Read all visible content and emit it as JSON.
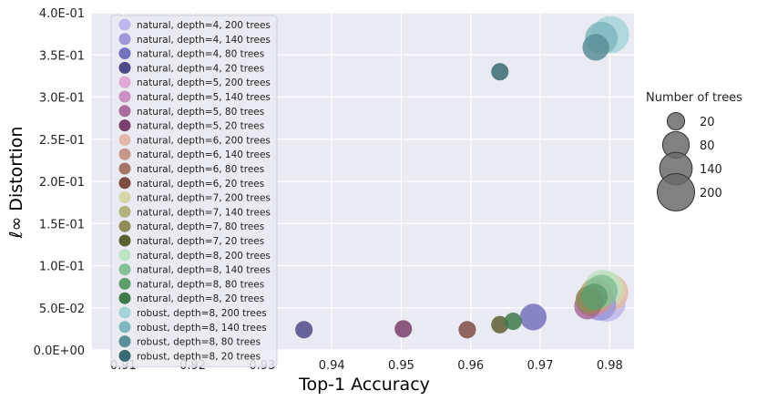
{
  "chart_data": {
    "type": "scatter",
    "xlabel": "Top-1 Accuracy",
    "ylabel": "ℓ∞ Distortion",
    "xlim": [
      0.9055,
      0.9835
    ],
    "ylim": [
      0.0,
      0.4
    ],
    "x_ticks": [
      "0.91",
      "0.92",
      "0.93",
      "0.94",
      "0.95",
      "0.96",
      "0.97",
      "0.98"
    ],
    "y_ticks": [
      "0.0E+00",
      "5.0E-02",
      "1.0E-01",
      "1.5E-01",
      "2.0E-01",
      "2.5E-01",
      "3.0E-01",
      "3.5E-01",
      "4.0E-01"
    ],
    "grid": true,
    "legend_placement": "upper-left",
    "series": [
      {
        "name": "natural, depth=4, 200 trees",
        "color": "#bcb8ec",
        "trees": 200,
        "x": 0.9796,
        "y": 0.056
      },
      {
        "name": "natural, depth=4, 140 trees",
        "color": "#9c98d8",
        "trees": 140,
        "x": 0.9786,
        "y": 0.054
      },
      {
        "name": "natural, depth=4, 80 trees",
        "color": "#7572bc",
        "trees": 80,
        "x": 0.969,
        "y": 0.039
      },
      {
        "name": "natural, depth=4, 20 trees",
        "color": "#4e4b8a",
        "trees": 20,
        "x": 0.936,
        "y": 0.024
      },
      {
        "name": "natural,  depth=5, 200 trees",
        "color": "#e2a8d8",
        "trees": 200,
        "x": 0.9792,
        "y": 0.066
      },
      {
        "name": "natural,  depth=5, 140 trees",
        "color": "#c98fc0",
        "trees": 140,
        "x": 0.9775,
        "y": 0.058
      },
      {
        "name": "natural,  depth=5, 80 trees",
        "color": "#a96c9d",
        "trees": 80,
        "x": 0.9768,
        "y": 0.052
      },
      {
        "name": "natural,  depth=5, 20 trees",
        "color": "#7a3f6c",
        "trees": 20,
        "x": 0.9503,
        "y": 0.025
      },
      {
        "name": "natural, depth=6, 200 trees",
        "color": "#e3b8ac",
        "trees": 200,
        "x": 0.98,
        "y": 0.068
      },
      {
        "name": "natural, depth=6, 140 trees",
        "color": "#c8978c",
        "trees": 140,
        "x": 0.9782,
        "y": 0.063
      },
      {
        "name": "natural, depth=6, 80 trees",
        "color": "#a8756b",
        "trees": 80,
        "x": 0.9772,
        "y": 0.057
      },
      {
        "name": "natural, depth=6, 20 trees",
        "color": "#7c4c45",
        "trees": 20,
        "x": 0.9595,
        "y": 0.024
      },
      {
        "name": "natural, depth=7, 200 trees",
        "color": "#d6d7a8",
        "trees": 200,
        "x": 0.9795,
        "y": 0.071
      },
      {
        "name": "natural, depth=7, 140 trees",
        "color": "#b0b37d",
        "trees": 140,
        "x": 0.978,
        "y": 0.066
      },
      {
        "name": "natural, depth=7, 80 trees",
        "color": "#8d8d57",
        "trees": 80,
        "x": 0.977,
        "y": 0.06
      },
      {
        "name": "natural, depth=7, 20 trees",
        "color": "#5c5f33",
        "trees": 20,
        "x": 0.9642,
        "y": 0.03
      },
      {
        "name": "natural, depth=8, 200 trees",
        "color": "#bde3c5",
        "trees": 200,
        "x": 0.979,
        "y": 0.073
      },
      {
        "name": "natural, depth=8, 140 trees",
        "color": "#86c096",
        "trees": 140,
        "x": 0.9788,
        "y": 0.07
      },
      {
        "name": "natural, depth=8, 80 trees",
        "color": "#5e9e6d",
        "trees": 80,
        "x": 0.9778,
        "y": 0.063
      },
      {
        "name": "natural, depth=8, 20 trees",
        "color": "#3e7a4b",
        "trees": 20,
        "x": 0.9661,
        "y": 0.034
      },
      {
        "name": "robust, depth=8, 200 trees",
        "color": "#a6d3d8",
        "trees": 200,
        "x": 0.9801,
        "y": 0.374
      },
      {
        "name": "robust, depth=8, 140 trees",
        "color": "#7fb7bf",
        "trees": 140,
        "x": 0.9788,
        "y": 0.37
      },
      {
        "name": "robust, depth=8, 80 trees",
        "color": "#5a8f98",
        "trees": 80,
        "x": 0.978,
        "y": 0.359
      },
      {
        "name": "robust, depth=8, 20 trees",
        "color": "#3a6a72",
        "trees": 20,
        "x": 0.9642,
        "y": 0.33
      }
    ],
    "size_legend": {
      "title": "Number of trees",
      "entries": [
        {
          "label": "20",
          "trees": 20
        },
        {
          "label": "80",
          "trees": 80
        },
        {
          "label": "140",
          "trees": 140
        },
        {
          "label": "200",
          "trees": 200
        }
      ],
      "color": "#6b6b6b"
    },
    "background_color": "#eaeaf2"
  }
}
